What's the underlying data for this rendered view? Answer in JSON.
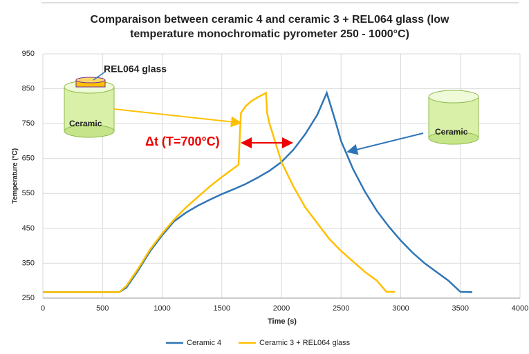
{
  "chart_data": {
    "type": "line",
    "title": "Comparaison between ceramic 4 and ceramic 3 + REL064 glass (low temperature monochromatic pyrometer 250 - 1000°C)",
    "xlabel": "Time (s)",
    "ylabel": "Temperature (°C)",
    "xlim": [
      0,
      4000
    ],
    "xticks": [
      0,
      500,
      1000,
      1500,
      2000,
      2500,
      3000,
      3500,
      4000
    ],
    "ylim": [
      250,
      950
    ],
    "yticks": [
      250,
      350,
      450,
      550,
      650,
      750,
      850,
      950
    ],
    "grid": true,
    "legend": "bottom",
    "annotations": [
      "REL064 glass",
      "Ceramic",
      "Ceramic",
      "Δt (T=700°C)"
    ],
    "series": [
      {
        "name": "Ceramic 4",
        "color": "#2e75b6",
        "x": [
          0,
          640,
          700,
          800,
          900,
          1000,
          1100,
          1200,
          1300,
          1400,
          1500,
          1600,
          1700,
          1800,
          1900,
          2000,
          2100,
          2200,
          2300,
          2380,
          2450,
          2500,
          2600,
          2700,
          2800,
          2900,
          3000,
          3100,
          3200,
          3300,
          3400,
          3500,
          3600
        ],
        "values": [
          267,
          267,
          280,
          330,
          385,
          430,
          470,
          495,
          515,
          532,
          548,
          562,
          577,
          595,
          615,
          640,
          675,
          720,
          775,
          838,
          760,
          700,
          620,
          555,
          500,
          455,
          415,
          380,
          350,
          325,
          300,
          268,
          267
        ]
      },
      {
        "name": "Ceramic 3 + REL064 glass",
        "color": "#ffc000",
        "x": [
          0,
          640,
          700,
          800,
          900,
          1000,
          1100,
          1200,
          1300,
          1400,
          1500,
          1600,
          1640,
          1660,
          1700,
          1750,
          1800,
          1870,
          1880,
          1900,
          2000,
          2100,
          2200,
          2300,
          2400,
          2500,
          2600,
          2700,
          2800,
          2880,
          2950
        ],
        "values": [
          267,
          267,
          285,
          335,
          390,
          435,
          475,
          510,
          540,
          570,
          597,
          622,
          632,
          780,
          800,
          815,
          825,
          838,
          780,
          750,
          640,
          570,
          510,
          465,
          420,
          385,
          355,
          325,
          300,
          268,
          268
        ]
      }
    ]
  }
}
